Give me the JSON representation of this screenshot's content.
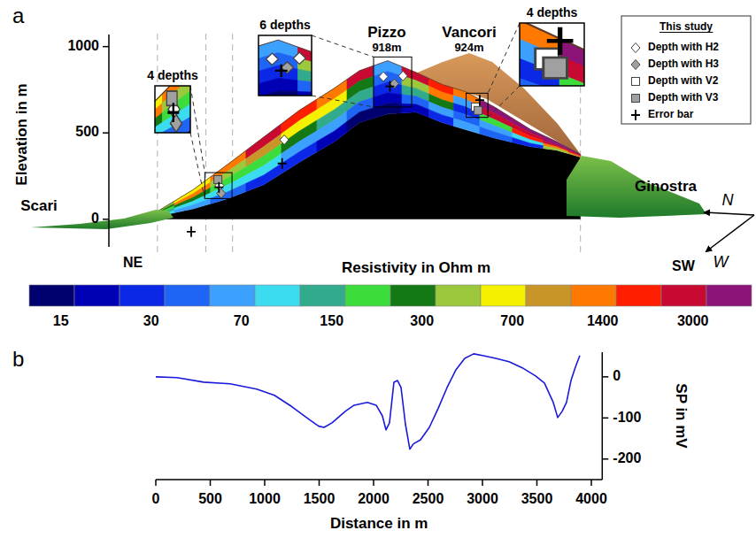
{
  "chart_data": [
    {
      "type": "section",
      "panel": "a",
      "ylabel": "Elevation in m",
      "xlim": [
        0,
        4000
      ],
      "ylim": [
        -160,
        1070
      ],
      "yticks": [
        0,
        500,
        1000
      ],
      "tick_labels": "y",
      "section": {
        "x": [
          0,
          340,
          665,
          990,
          1317,
          1642,
          1870,
          2130,
          2390,
          2630,
          2840,
          3110,
          3440,
          3680,
          3900
        ],
        "surface": [
          40,
          170,
          320,
          475,
          630,
          760,
          860,
          918,
          850,
          780,
          740,
          650,
          520,
          450,
          375
        ],
        "bottom": [
          15,
          60,
          120,
          200,
          330,
          450,
          560,
          610,
          620,
          560,
          520,
          470,
          420,
          400,
          360
        ],
        "resistivity": [
          [
            500,
            700,
            1400,
            3000,
            2000,
            1400,
            3000,
            60,
            3000,
            2000,
            1400,
            5000,
            5000,
            4000,
            5000
          ],
          [
            300,
            1400,
            400,
            800,
            700,
            600,
            300,
            40,
            500,
            1500,
            60,
            2500,
            3000,
            5000,
            4000
          ],
          [
            200,
            300,
            200,
            200,
            250,
            150,
            120,
            25,
            150,
            300,
            30,
            200,
            2000,
            3000,
            3000
          ],
          [
            150,
            100,
            80,
            90,
            70,
            60,
            50,
            20,
            40,
            70,
            40,
            60,
            80,
            1500,
            2000
          ],
          [
            80,
            60,
            40,
            30,
            25,
            20,
            15,
            15,
            20,
            30,
            60,
            40,
            30,
            500,
            1000
          ]
        ]
      },
      "reference_lines": [
        15,
        460,
        705,
        3900
      ],
      "colorbar": {
        "title": "Resistivity in Ohm m",
        "colors": [
          "#00006e",
          "#0000b4",
          "#0a28e6",
          "#1e64f5",
          "#3ca0ff",
          "#3cdcf0",
          "#32aa8c",
          "#3cdc3c",
          "#147814",
          "#9bc83c",
          "#f5f000",
          "#c89628",
          "#ff7800",
          "#ff1e00",
          "#c80a32",
          "#8c1478"
        ],
        "ticks": [
          15,
          30,
          70,
          150,
          300,
          700,
          1400,
          3000
        ]
      },
      "legend": "upper right",
      "legend_title": "This study",
      "series": [
        {
          "name": "Depth with H2",
          "marker": "diamond",
          "color": "#ffffff",
          "x": [
            585,
            1180,
            2090,
            2270
          ],
          "values": [
            195,
            460,
            826,
            830
          ]
        },
        {
          "name": "Depth with H3",
          "marker": "diamond",
          "color": "#a0a0a0",
          "x": [
            600,
            2190
          ],
          "values": [
            150,
            785
          ]
        },
        {
          "name": "Depth with V2",
          "marker": "square",
          "color": "#ffffff",
          "x": [
            2935
          ],
          "values": [
            650
          ]
        },
        {
          "name": "Depth with V3",
          "marker": "square",
          "color": "#a0a0a0",
          "x": [
            570,
            2960
          ],
          "values": [
            230,
            630
          ]
        },
        {
          "name": "Error bar",
          "marker": "plus",
          "color": "#000000",
          "x": [
            325,
            580,
            1160,
            2150,
            2975
          ],
          "values": [
            -72,
            185,
            323,
            770,
            690
          ]
        }
      ],
      "insets": [
        {
          "label": "4 depths",
          "x": [
            450,
            700
          ],
          "elevation": [
            120,
            270
          ]
        },
        {
          "label": "6 depths",
          "x": [
            2000,
            2350
          ],
          "elevation": [
            650,
            940
          ]
        },
        {
          "label": "4 depths",
          "x": [
            2850,
            3050
          ],
          "elevation": [
            590,
            730
          ]
        }
      ],
      "peaks": [
        {
          "name": "Pizzo",
          "label": "918m"
        },
        {
          "name": "Vancori",
          "label": "924m"
        }
      ],
      "places": [
        "Scari",
        "Ginostra"
      ],
      "directions": {
        "left": "NE",
        "right": "SW"
      },
      "compass": [
        "N",
        "W"
      ]
    },
    {
      "type": "line",
      "panel": "b",
      "xlabel": "Distance in m",
      "ylabel": "SP in mV",
      "x": [
        0,
        195,
        440,
        683,
        927,
        1090,
        1252,
        1415,
        1496,
        1545,
        1618,
        1740,
        1821,
        1943,
        2024,
        2081,
        2114,
        2146,
        2187,
        2220,
        2252,
        2293,
        2333,
        2366,
        2431,
        2512,
        2593,
        2675,
        2756,
        2837,
        2919,
        3000,
        3122,
        3244,
        3366,
        3488,
        3569,
        3650,
        3691,
        3732,
        3772,
        3813,
        3854,
        3894
      ],
      "values": [
        0,
        -2,
        -13,
        -17,
        -30,
        -45,
        -73,
        -105,
        -120,
        -123,
        -112,
        -84,
        -69,
        -62,
        -69,
        -95,
        -129,
        -112,
        -13,
        -9,
        -26,
        -116,
        -176,
        -163,
        -153,
        -123,
        -77,
        -26,
        17,
        45,
        56,
        52,
        45,
        37,
        22,
        2,
        -15,
        -62,
        -99,
        -84,
        -62,
        -9,
        24,
        52
      ],
      "color": "#1a1adc",
      "xlim": [
        0,
        4100
      ],
      "xticks": [
        0,
        500,
        1000,
        1500,
        2000,
        2500,
        3000,
        3500,
        4000
      ],
      "ylim": [
        -250,
        60
      ],
      "yticks": [
        0,
        -100,
        -200
      ]
    }
  ]
}
